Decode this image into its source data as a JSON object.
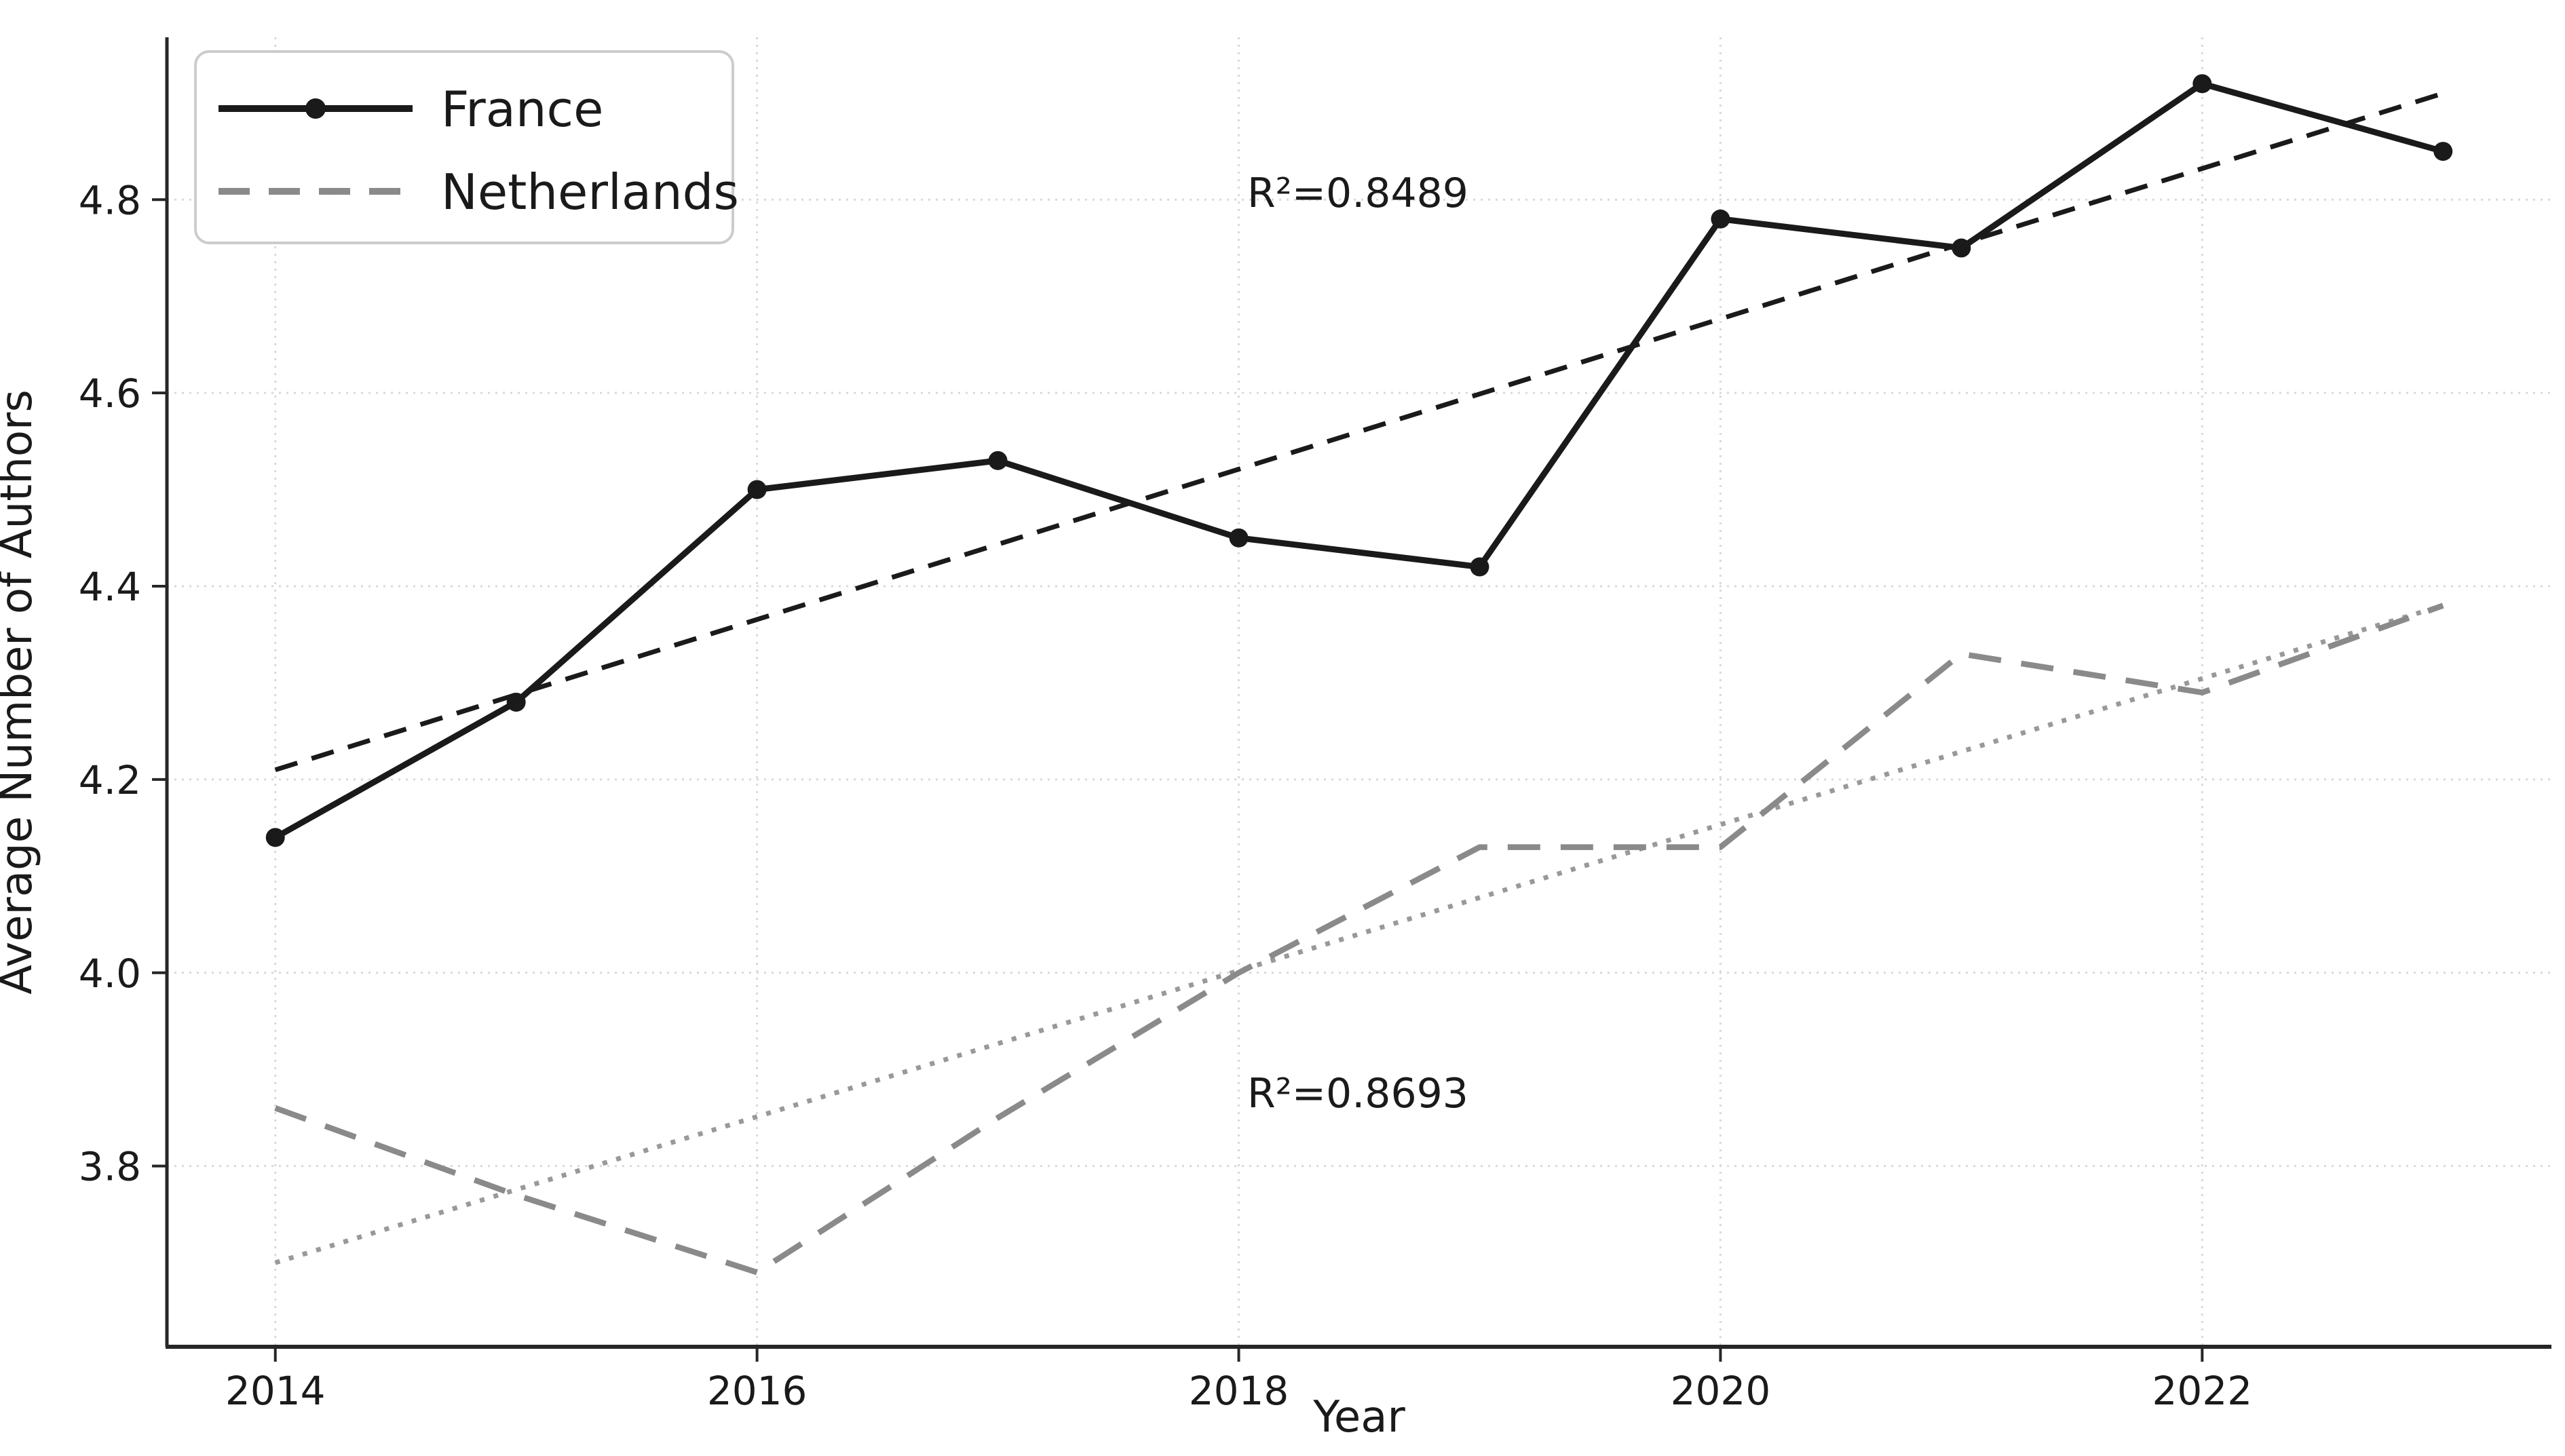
{
  "figure": {
    "background": "#ffffff",
    "grid_color": "#d9d9d9",
    "spine_color": "#262626",
    "tick_label_color": "#1a1a1a"
  },
  "chart_data": {
    "type": "line",
    "title": "",
    "xlabel": "Year",
    "ylabel": "Average Number of Authors",
    "x": [
      2014,
      2015,
      2016,
      2017,
      2018,
      2019,
      2020,
      2021,
      2022,
      2023
    ],
    "series": [
      {
        "name": "France",
        "values": [
          4.14,
          4.28,
          4.5,
          4.53,
          4.45,
          4.42,
          4.78,
          4.75,
          4.92,
          4.85
        ],
        "color": "#1a1a1a",
        "style": "solid",
        "marker": "circle"
      },
      {
        "name": "Netherlands",
        "values": [
          3.86,
          3.77,
          3.69,
          3.85,
          4.0,
          4.13,
          4.13,
          4.33,
          4.29,
          4.38
        ],
        "color": "#8a8a8a",
        "style": "dashed",
        "marker": "none"
      }
    ],
    "trendlines": [
      {
        "series": "France",
        "r_squared_label": "R²=0.8489",
        "r_squared": 0.8489,
        "start": {
          "x": 2014,
          "y": 4.21
        },
        "end": {
          "x": 2023,
          "y": 4.91
        },
        "style": "dashed",
        "color": "#1a1a1a",
        "label_pos": {
          "x": 2018.5,
          "y": 4.815
        },
        "label_color": "#1a1a1a"
      },
      {
        "series": "Netherlands",
        "r_squared_label": "R²=0.8693",
        "r_squared": 0.8693,
        "start": {
          "x": 2014,
          "y": 3.7
        },
        "end": {
          "x": 2023,
          "y": 4.38
        },
        "style": "dotted",
        "color": "#999999",
        "label_pos": {
          "x": 2018.5,
          "y": 3.87
        },
        "label_color": "#8a8a8a"
      }
    ],
    "x_ticks": [
      2014,
      2016,
      2018,
      2020,
      2022
    ],
    "y_ticks": [
      3.8,
      4.0,
      4.2,
      4.4,
      4.6,
      4.8
    ],
    "xlim": [
      2013.55,
      2023.45
    ],
    "ylim": [
      3.613,
      4.968
    ],
    "grid": true,
    "legend_position": "upper left"
  }
}
